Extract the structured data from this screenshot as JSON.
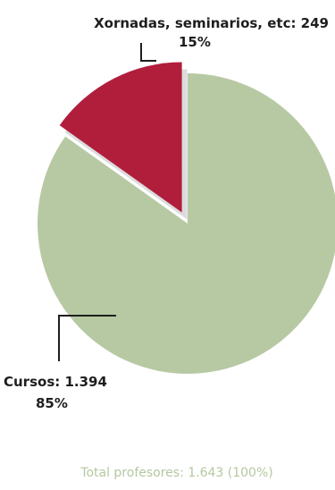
{
  "chart_data": {
    "type": "pie",
    "categories": [
      "Xornadas, seminarios, etc",
      "Cursos"
    ],
    "values": [
      249,
      1394
    ],
    "percent_labels": [
      "15%",
      "85%"
    ],
    "slice_labels": [
      "Xornadas, seminarios, etc: 249",
      "Cursos: 1.394"
    ],
    "colors": [
      "#b01e3c",
      "#b7c9a3"
    ],
    "exploded": [
      true,
      false
    ],
    "footer": "Total profesores: 1.643 (100%)"
  },
  "colors": {
    "label_text": "#1e1e1e",
    "footer_text": "#b4c8a0",
    "leader_line": "#1e1e1e",
    "slice_shadow": "#dcdcdc"
  }
}
